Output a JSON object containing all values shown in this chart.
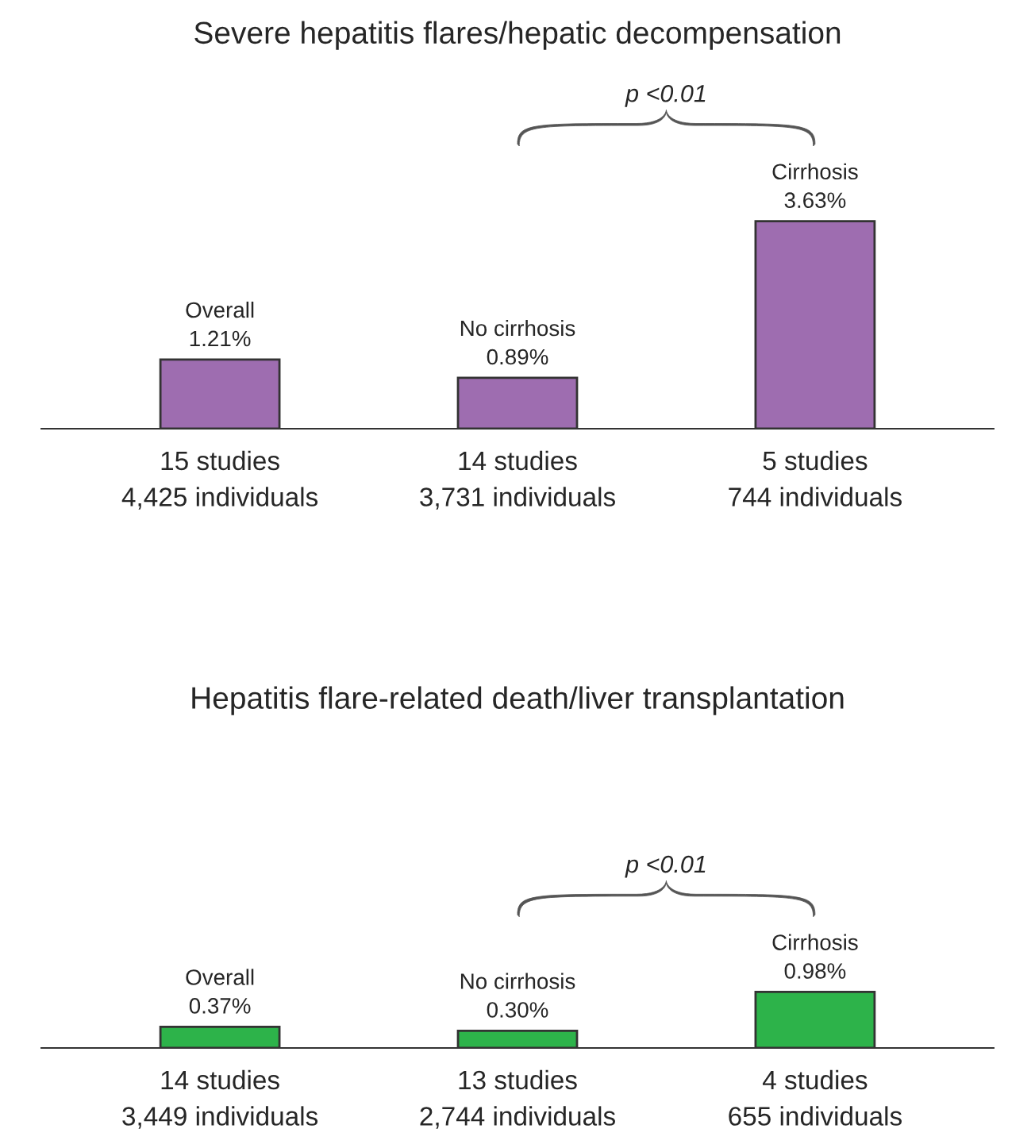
{
  "chart_data": [
    {
      "type": "bar",
      "title": "Severe hepatitis flares/hepatic decompensation",
      "categories": [
        "15 studies\n4,425 individuals",
        "14 studies\n3,731 individuals",
        "5 studies\n744 individuals"
      ],
      "values": [
        1.21,
        0.89,
        3.63
      ],
      "value_labels": [
        "Overall\n1.21%",
        "No cirrhosis\n0.89%",
        "Cirrhosis\n3.63%"
      ],
      "color": "#9e6db0",
      "annotations": [
        "p <0.01"
      ],
      "tick_labels": "x",
      "grid": false,
      "legend": false
    },
    {
      "type": "bar",
      "title": "Hepatitis flare-related death/liver transplantation",
      "categories": [
        "14 studies\n3,449 individuals",
        "13 studies\n2,744 individuals",
        "4 studies\n655 individuals"
      ],
      "values": [
        0.37,
        0.3,
        0.98
      ],
      "value_labels": [
        "Overall\n0.37%",
        "No cirrhosis\n0.30%",
        "Cirrhosis\n0.98%"
      ],
      "color": "#2db34a",
      "annotations": [
        "p <0.01"
      ],
      "tick_labels": "x",
      "grid": false,
      "legend": false
    }
  ]
}
